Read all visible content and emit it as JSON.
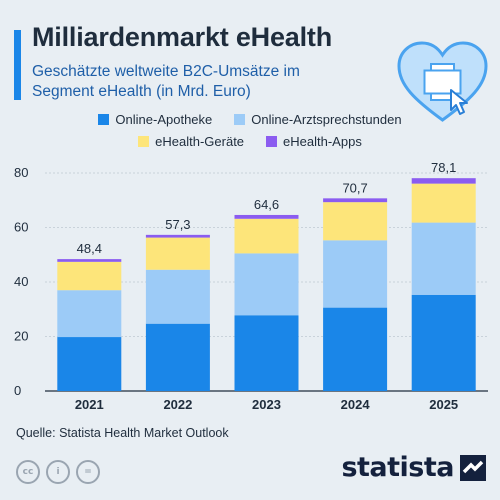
{
  "header": {
    "title": "Milliardenmarkt eHealth",
    "subtitle": "Geschätzte weltweite B2C-Umsätze im Segment eHealth (in Mrd. Euro)"
  },
  "icons": {
    "illustration": "heart-medical-cross-icon",
    "cursor": "cursor-arrow-icon"
  },
  "chart_data": {
    "type": "bar",
    "stacked": true,
    "categories": [
      "2021",
      "2022",
      "2023",
      "2024",
      "2025"
    ],
    "series": [
      {
        "name": "Online-Apotheke",
        "color": "#1a86e8",
        "values": [
          19.8,
          24.7,
          27.8,
          30.6,
          35.3
        ]
      },
      {
        "name": "Online-Arztsprechstunden",
        "color": "#9ccbf7",
        "values": [
          17.2,
          19.8,
          22.7,
          24.7,
          26.5
        ]
      },
      {
        "name": "eHealth-Geräte",
        "color": "#fde57a",
        "values": [
          10.4,
          11.8,
          12.7,
          14.0,
          14.3
        ]
      },
      {
        "name": "eHealth-Apps",
        "color": "#8b5cf0",
        "values": [
          1.0,
          1.0,
          1.4,
          1.4,
          2.0
        ]
      }
    ],
    "totals": [
      "48,4",
      "57,3",
      "64,6",
      "70,7",
      "78,1"
    ],
    "yticks": [
      0,
      20,
      40,
      60,
      80
    ],
    "ylim": [
      0,
      80
    ],
    "grid": true,
    "legend_position": "top-center"
  },
  "footer": {
    "source": "Quelle: Statista Health Market Outlook",
    "license_icons": [
      "cc-icon",
      "attribution-icon",
      "no-derivatives-icon"
    ],
    "license_text": [
      "cc",
      "i",
      "="
    ],
    "brand": "statista",
    "brand_icon": "statista-logo-icon"
  }
}
